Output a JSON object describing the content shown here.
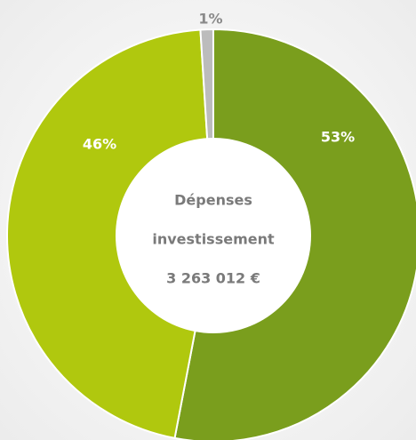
{
  "chart_data": {
    "type": "donut",
    "values": [
      53,
      46,
      1
    ],
    "value_labels": [
      "53%",
      "46%",
      "1%"
    ],
    "colors": [
      "#7a9e1d",
      "#b0c80e",
      "#bcbcbc"
    ],
    "center_text": [
      "Dépenses",
      "investissement",
      "3 263 012 €"
    ]
  }
}
